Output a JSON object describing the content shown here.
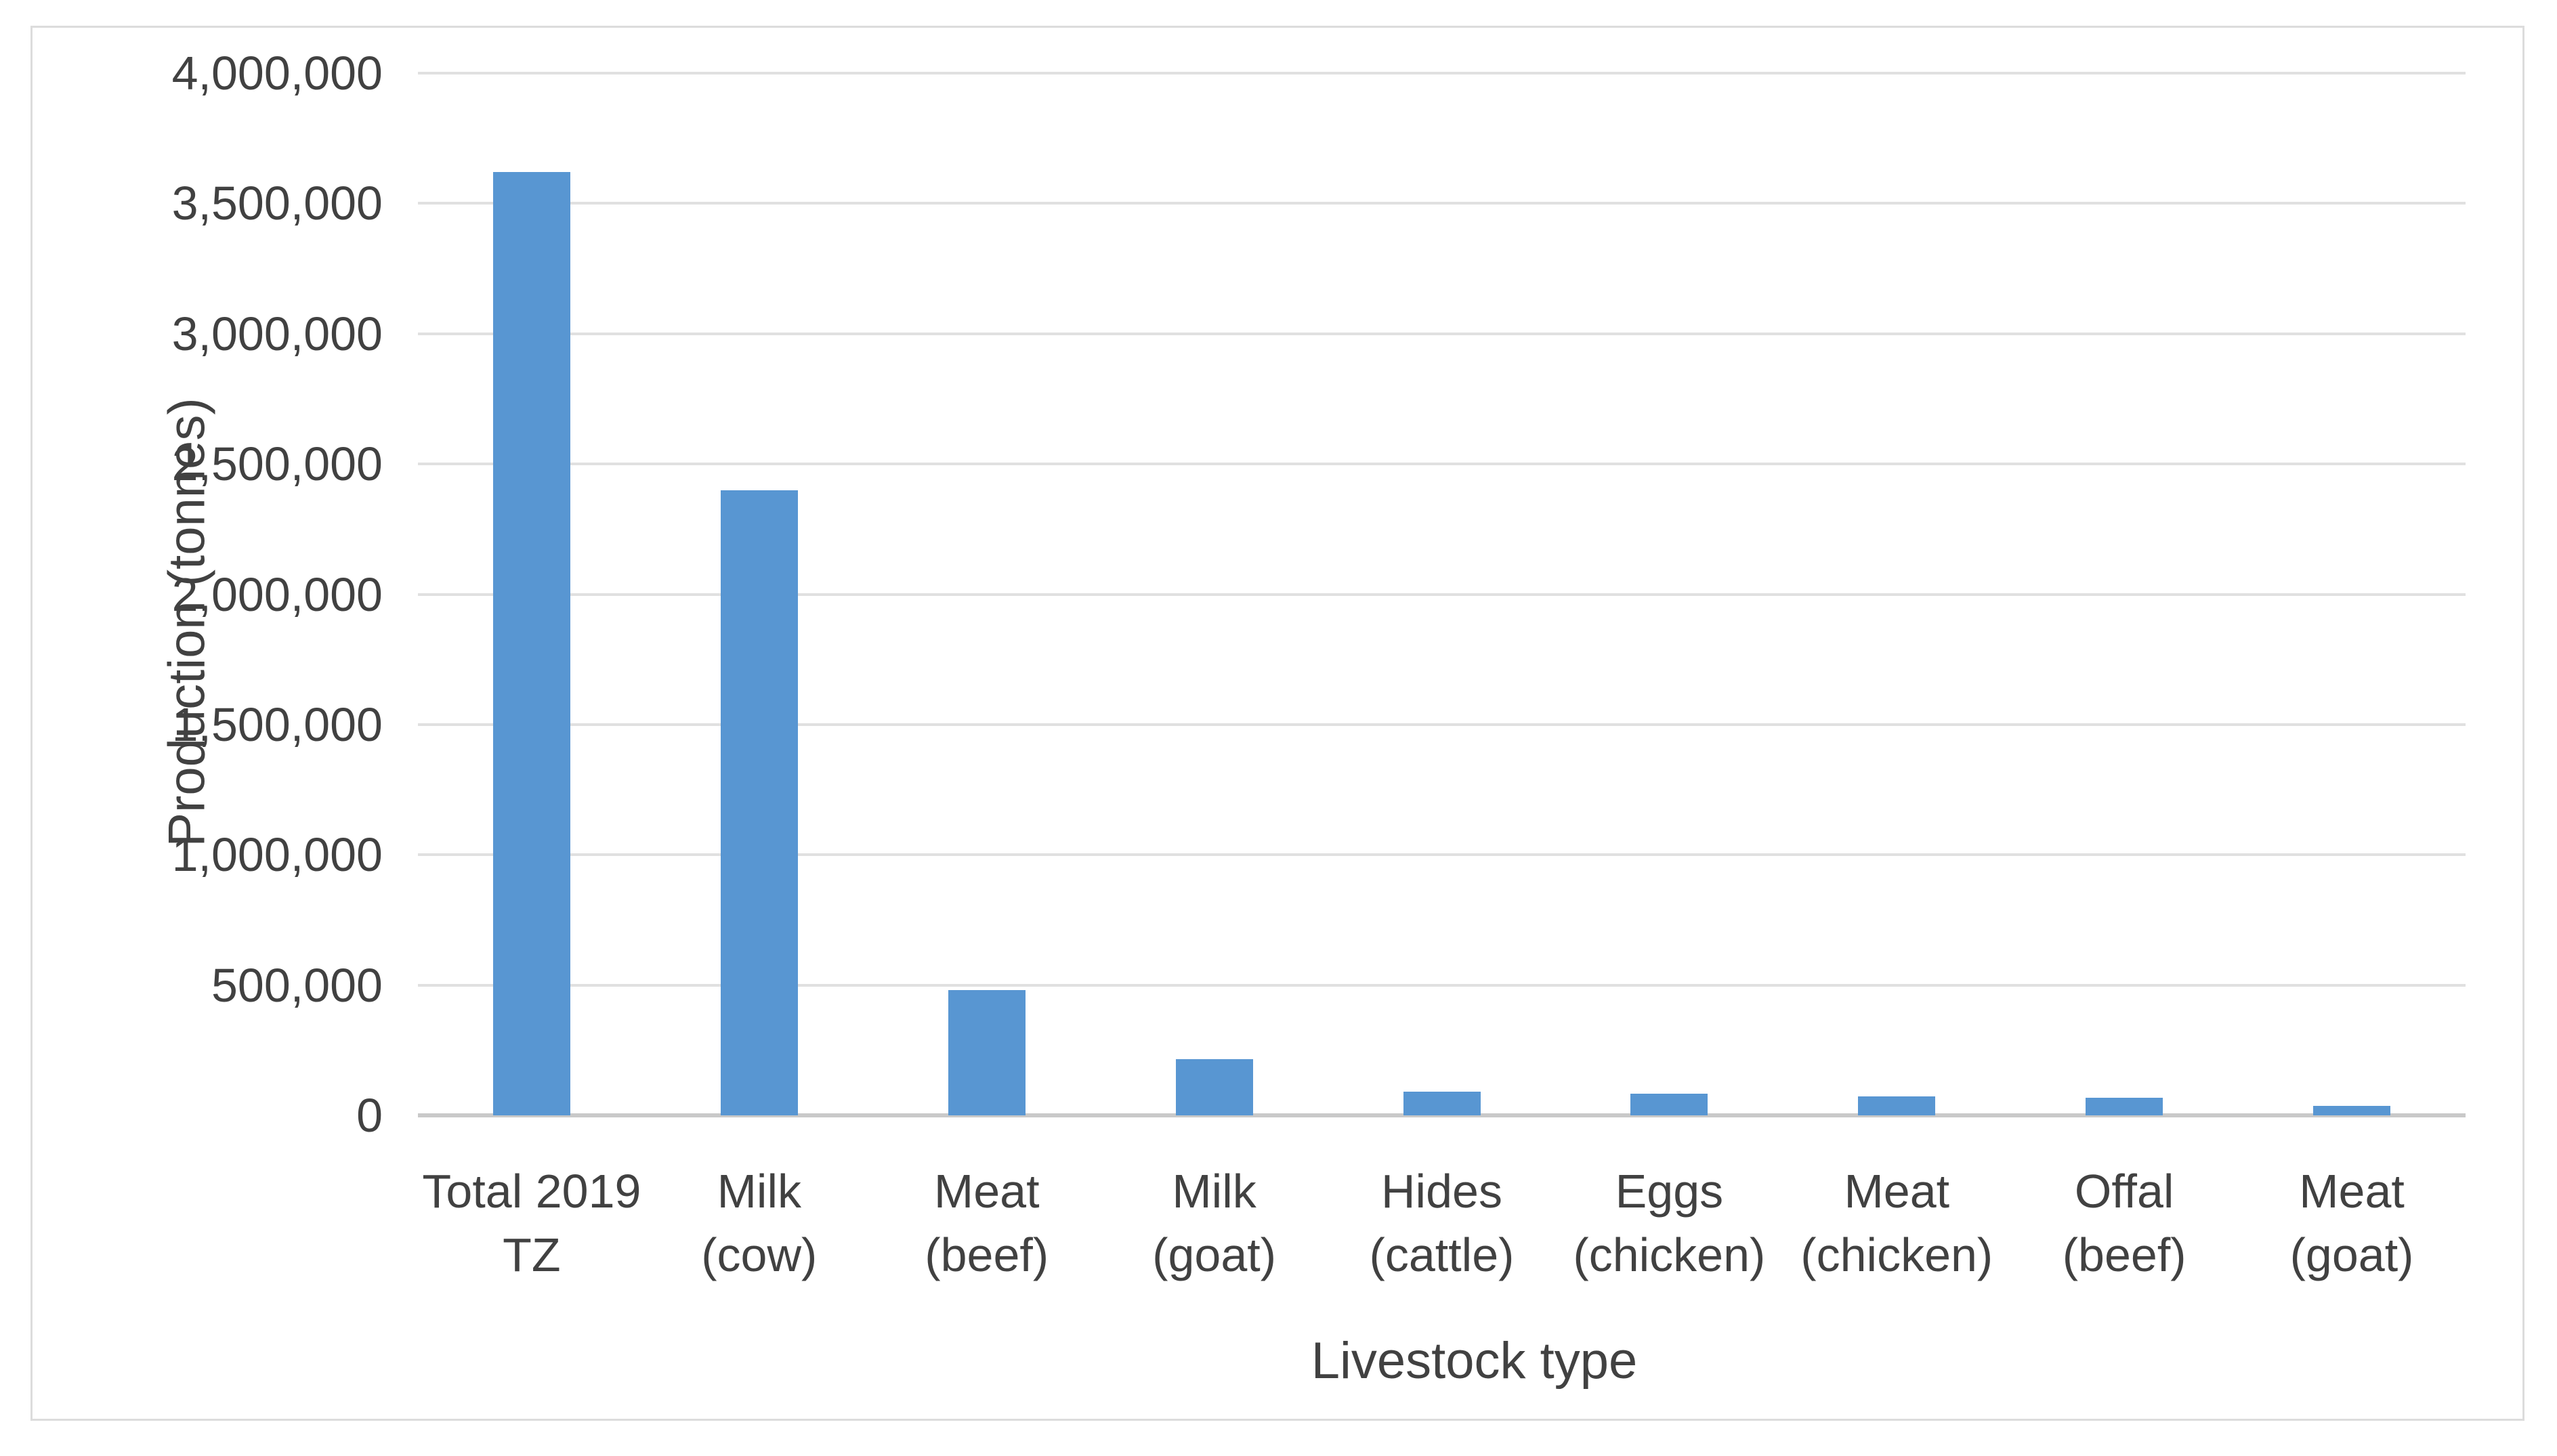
{
  "chart_data": {
    "type": "bar",
    "title": "",
    "xlabel": "Livestock type",
    "ylabel": "Production (tonnes)",
    "categories": [
      "Total 2019\nTZ",
      "Milk\n(cow)",
      "Meat\n(beef)",
      "Milk\n(goat)",
      "Hides\n(cattle)",
      "Eggs\n(chicken)",
      "Meat\n(chicken)",
      "Offal\n(beef)",
      "Meat\n(goat)"
    ],
    "values": [
      3620000,
      2400000,
      480000,
      215000,
      90000,
      82000,
      72000,
      68000,
      36000
    ],
    "ylim": [
      0,
      4000000
    ],
    "ytick_step": 500000,
    "ytick_labels": [
      "0",
      "500,000",
      "1,000,000",
      "1,500,000",
      "2,000,000",
      "2,500,000",
      "3,000,000",
      "3,500,000",
      "4,000,000"
    ],
    "grid": true,
    "legend": false,
    "colors": {
      "bar": "#5896d2",
      "gridline": "#e0e0e0",
      "axis_line": "#c9c9c9",
      "text": "#414141",
      "frame_border": "#dcdcdc",
      "background": "#ffffff"
    }
  }
}
